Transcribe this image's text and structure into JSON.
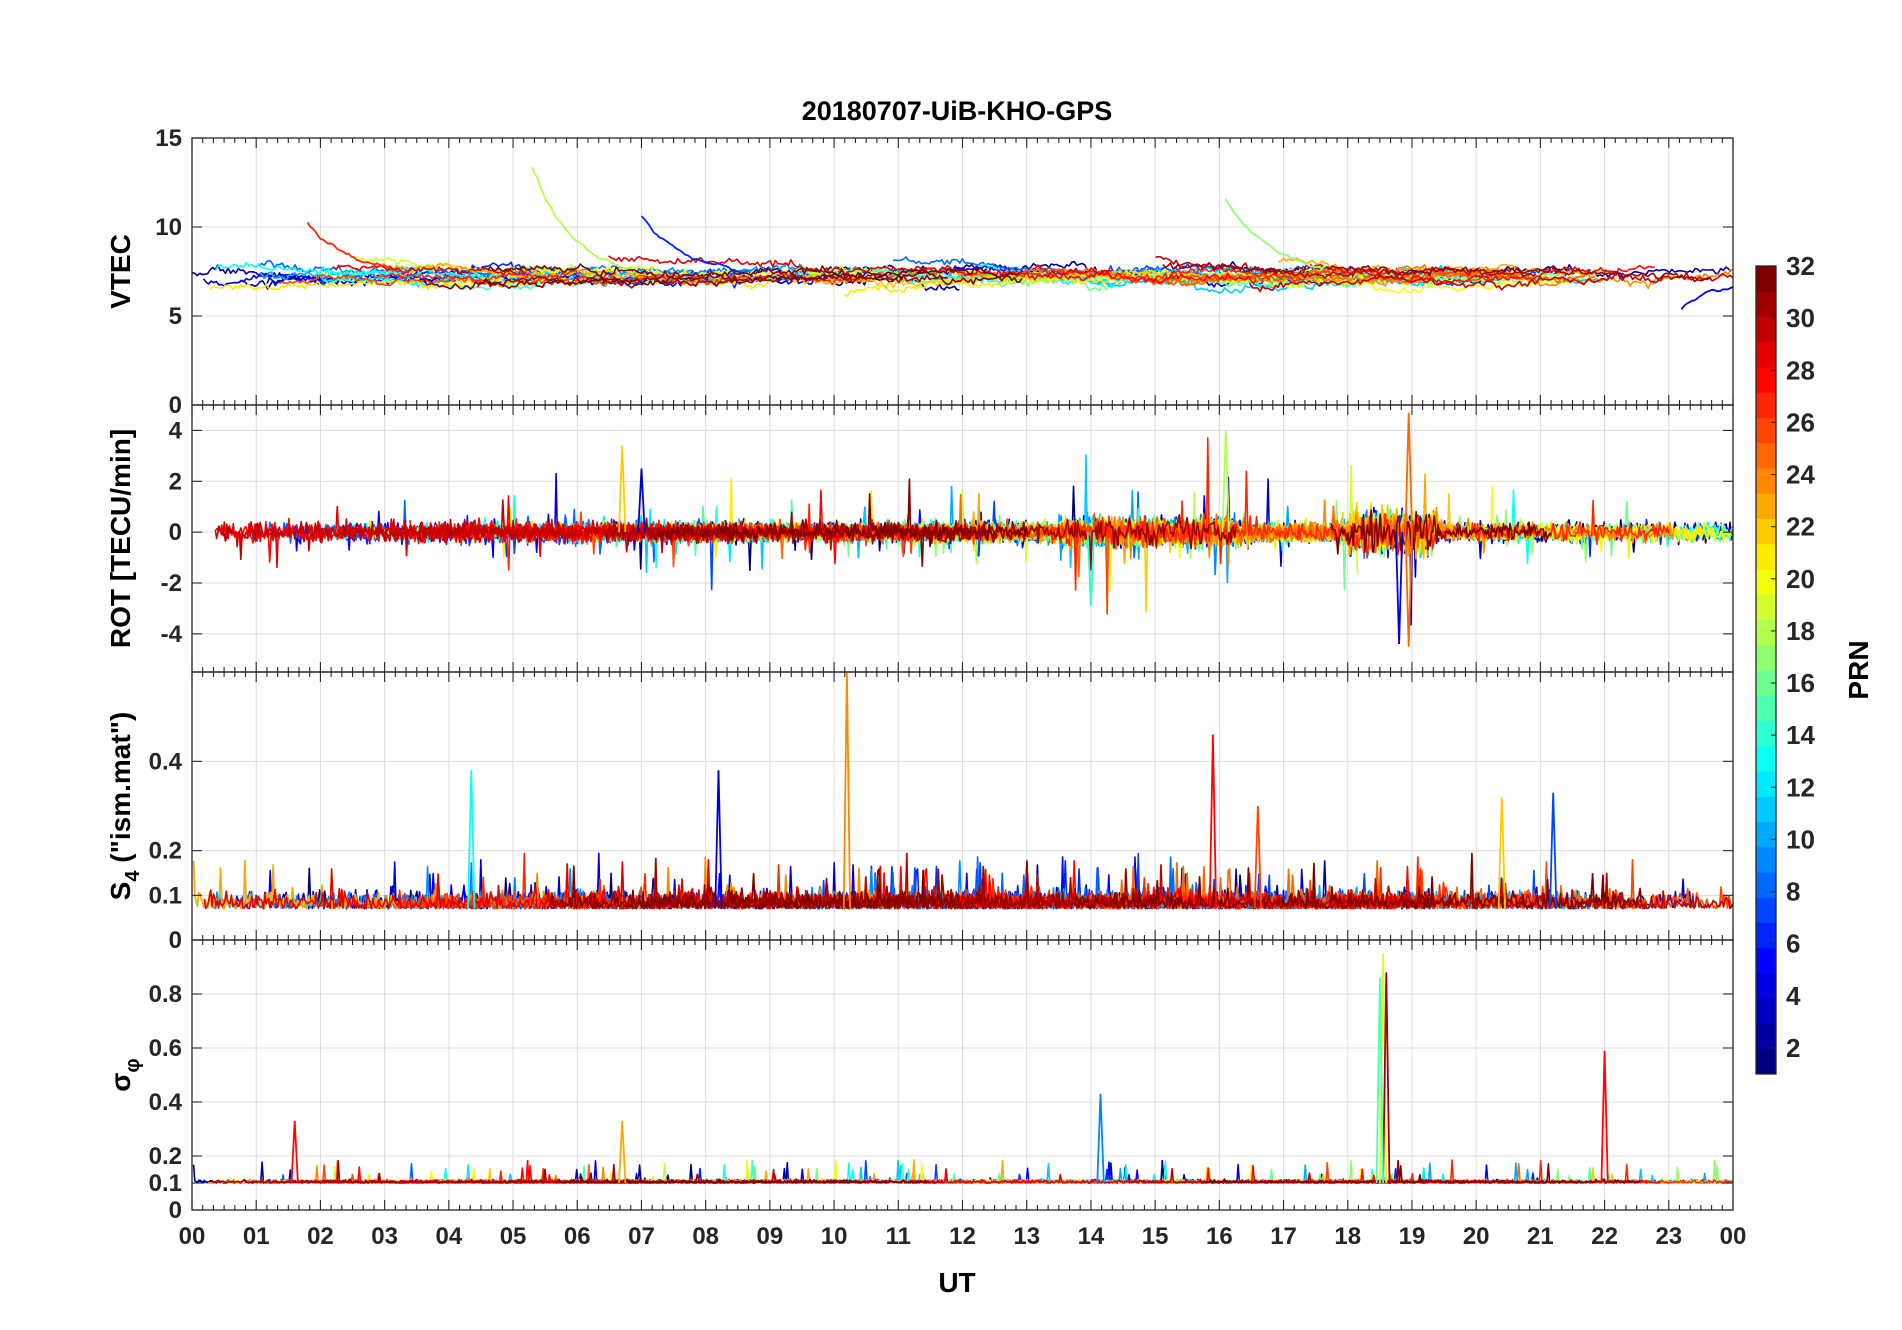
{
  "chart_data": {
    "type": "line",
    "title": "20180707-UiB-KHO-GPS",
    "xlabel": "UT",
    "x_ticks": [
      "00",
      "01",
      "02",
      "03",
      "04",
      "05",
      "06",
      "07",
      "08",
      "09",
      "10",
      "11",
      "12",
      "13",
      "14",
      "15",
      "16",
      "17",
      "18",
      "19",
      "20",
      "21",
      "22",
      "23",
      "00"
    ],
    "xlim": [
      0,
      24
    ],
    "colorbar": {
      "label": "PRN",
      "range": [
        1,
        32
      ],
      "tick_values": [
        2,
        4,
        6,
        8,
        10,
        12,
        14,
        16,
        18,
        20,
        22,
        24,
        26,
        28,
        30,
        32
      ],
      "tick_labels": [
        "2",
        "4",
        "6",
        "8",
        "10",
        "12",
        "14",
        "16",
        "18",
        "20",
        "22",
        "24",
        "26",
        "28",
        "30",
        "32"
      ],
      "colormap": "jet"
    },
    "panels": [
      {
        "id": "vtec",
        "ylabel": "VTEC",
        "ylim": [
          0,
          15
        ],
        "y_ticks": [
          0,
          5,
          10,
          15
        ],
        "y_tick_labels": [
          "0",
          "5",
          "10",
          "15"
        ],
        "baseline": 7.3,
        "noise": 0.9,
        "kind": "vtec",
        "features": [
          {
            "x": 5.3,
            "y": 13.8,
            "prn": 18,
            "note": "decaying arc"
          },
          {
            "x": 1.8,
            "y": 10.4,
            "prn": 27
          },
          {
            "x": 7.0,
            "y": 10.9,
            "prn": 6
          },
          {
            "x": 16.1,
            "y": 11.7,
            "prn": 17
          },
          {
            "x": 23.2,
            "y": 5.3,
            "prn": 4
          }
        ]
      },
      {
        "id": "rot",
        "ylabel": "ROT [TECU/min]",
        "ylim": [
          -5.5,
          5
        ],
        "y_ticks": [
          -4,
          -2,
          0,
          2,
          4
        ],
        "y_tick_labels": [
          "-4",
          "-2",
          "0",
          "2",
          "4"
        ],
        "baseline": 0,
        "noise": 0.15,
        "kind": "rot",
        "features": [
          {
            "x": 6.7,
            "y": 3.4,
            "prn": 22
          },
          {
            "x": 7.0,
            "y": 2.5,
            "prn": 3
          },
          {
            "x": 14.0,
            "y": -2.9,
            "prn": 14
          },
          {
            "x": 16.1,
            "y": 4.0,
            "prn": 18
          },
          {
            "x": 18.95,
            "y": 4.7,
            "prn": 25
          },
          {
            "x": 18.95,
            "y": -4.5,
            "prn": 25
          },
          {
            "x": 18.8,
            "y": -4.4,
            "prn": 4
          }
        ]
      },
      {
        "id": "s4",
        "ylabel": "S4 (\"ism.mat\")",
        "ylabel_parts": {
          "s": "S",
          "sub": "4",
          "rest": " (\"ism.mat\")"
        },
        "ylim": [
          0,
          0.6
        ],
        "y_ticks": [
          0,
          0.1,
          0.2,
          0.4
        ],
        "y_tick_labels": [
          "0",
          "0.1",
          "0.2",
          "0.4"
        ],
        "baseline": 0.07,
        "noise": 0.025,
        "kind": "s4",
        "features": [
          {
            "x": 10.2,
            "y": 0.6,
            "prn": 24
          },
          {
            "x": 15.9,
            "y": 0.46,
            "prn": 28
          },
          {
            "x": 4.35,
            "y": 0.38,
            "prn": 13
          },
          {
            "x": 8.2,
            "y": 0.38,
            "prn": 4
          },
          {
            "x": 21.2,
            "y": 0.33,
            "prn": 7
          },
          {
            "x": 20.4,
            "y": 0.32,
            "prn": 22
          },
          {
            "x": 16.6,
            "y": 0.3,
            "prn": 26
          }
        ]
      },
      {
        "id": "sigma_phi",
        "ylabel": "σφ",
        "ylabel_parts": {
          "s": "σ",
          "sub": "φ",
          "rest": ""
        },
        "ylim": [
          0,
          1
        ],
        "y_ticks": [
          0,
          0.1,
          0.2,
          0.4,
          0.6,
          0.8
        ],
        "y_tick_labels": [
          "0",
          "0.1",
          "0.2",
          "0.4",
          "0.6",
          "0.8"
        ],
        "baseline": 0.1,
        "noise": 0.012,
        "kind": "sig",
        "features": [
          {
            "x": 18.55,
            "y": 0.95,
            "prn": 19
          },
          {
            "x": 18.6,
            "y": 0.88,
            "prn": 31
          },
          {
            "x": 18.5,
            "y": 0.86,
            "prn": 15
          },
          {
            "x": 22.0,
            "y": 0.59,
            "prn": 28
          },
          {
            "x": 14.15,
            "y": 0.43,
            "prn": 9
          },
          {
            "x": 1.6,
            "y": 0.33,
            "prn": 28
          },
          {
            "x": 6.7,
            "y": 0.33,
            "prn": 23
          }
        ]
      }
    ]
  }
}
